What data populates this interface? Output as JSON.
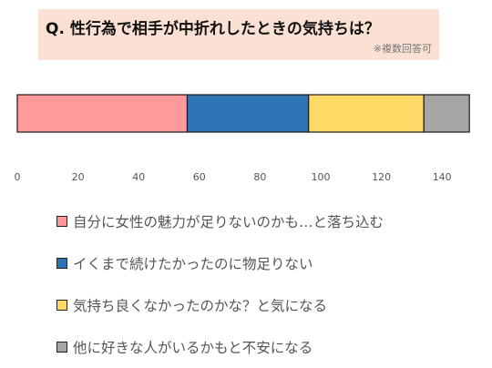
{
  "title": "Q. 性行為で相手が中折れしたときの気持ちは？",
  "subtitle": "※複数回答可",
  "chart_data": {
    "type": "bar",
    "orientation": "horizontal",
    "stacked": true,
    "title": "Q. 性行為で相手が中折れしたときの気持ちは？",
    "subtitle": "※複数回答可",
    "xlim": [
      0,
      150
    ],
    "xticks": [
      0,
      20,
      40,
      60,
      80,
      100,
      120,
      140
    ],
    "grid": false,
    "legend_position": "bottom",
    "series": [
      {
        "name": "自分に女性の魅力が足りないのかも…と落ち込む",
        "value": 56,
        "color": "#ff999a"
      },
      {
        "name": "イくまで続けたかったのに物足りない",
        "value": 40,
        "color": "#2e75b6"
      },
      {
        "name": "気持ち良くなかったのかな？と気になる",
        "value": 38,
        "color": "#ffd966"
      },
      {
        "name": "他に好きな人がいるかもと不安になる",
        "value": 15,
        "color": "#a5a5a5"
      }
    ]
  }
}
